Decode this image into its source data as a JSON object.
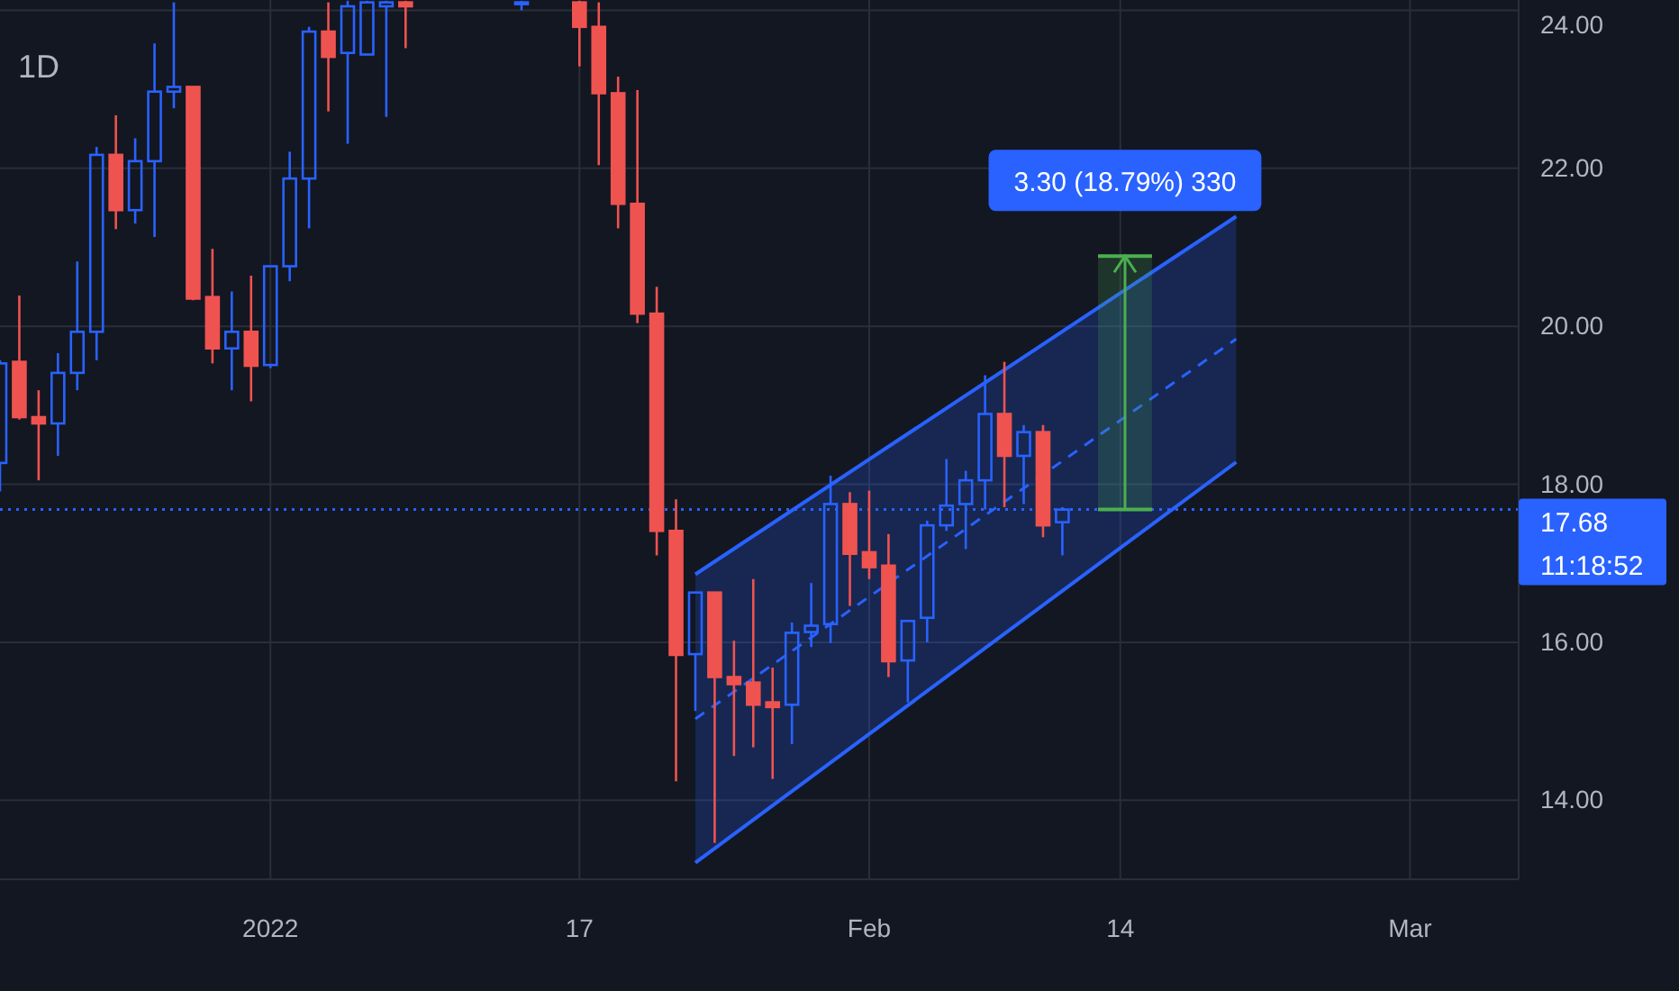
{
  "chart_data": {
    "type": "candlestick",
    "title": "1D",
    "x": [
      "2021-12-18",
      "2021-12-19",
      "2021-12-20",
      "2021-12-21",
      "2021-12-22",
      "2021-12-23",
      "2021-12-24",
      "2021-12-25",
      "2021-12-26",
      "2021-12-27",
      "2021-12-28",
      "2021-12-29",
      "2021-12-30",
      "2021-12-31",
      "2022-01-01",
      "2022-01-02",
      "2022-01-03",
      "2022-01-04",
      "2022-01-05",
      "2022-01-06",
      "2022-01-07",
      "2022-01-08",
      "2022-01-14",
      "2022-01-17",
      "2022-01-18",
      "2022-01-19",
      "2022-01-20",
      "2022-01-21",
      "2022-01-22",
      "2022-01-23",
      "2022-01-24",
      "2022-01-25",
      "2022-01-26",
      "2022-01-27",
      "2022-01-28",
      "2022-01-29",
      "2022-01-30",
      "2022-01-31",
      "2022-02-01",
      "2022-02-02",
      "2022-02-03",
      "2022-02-04",
      "2022-02-05",
      "2022-02-06",
      "2022-02-07",
      "2022-02-08",
      "2022-02-09",
      "2022-02-10",
      "2022-02-11"
    ],
    "ohlc": [
      [
        18.27,
        19.57,
        17.91,
        19.53
      ],
      [
        19.55,
        20.39,
        18.82,
        18.85
      ],
      [
        18.85,
        19.19,
        18.05,
        18.77
      ],
      [
        18.77,
        19.66,
        18.36,
        19.41
      ],
      [
        19.41,
        20.82,
        19.19,
        19.93
      ],
      [
        19.93,
        22.27,
        19.57,
        22.17
      ],
      [
        22.17,
        22.67,
        21.23,
        21.47
      ],
      [
        21.47,
        22.38,
        21.3,
        22.09
      ],
      [
        22.09,
        23.58,
        21.13,
        22.97
      ],
      [
        22.97,
        24.1,
        22.76,
        23.03
      ],
      [
        23.03,
        23.03,
        20.33,
        20.35
      ],
      [
        20.37,
        20.98,
        19.53,
        19.72
      ],
      [
        19.72,
        20.44,
        19.19,
        19.93
      ],
      [
        19.93,
        20.64,
        19.05,
        19.5
      ],
      [
        19.51,
        20.76,
        19.47,
        20.76
      ],
      [
        20.76,
        22.21,
        20.57,
        21.87
      ],
      [
        21.87,
        23.79,
        21.24,
        23.73
      ],
      [
        23.73,
        24.1,
        22.72,
        23.41
      ],
      [
        23.46,
        24.12,
        22.31,
        24.05
      ],
      [
        23.44,
        24.12,
        23.44,
        24.1
      ],
      [
        24.05,
        24.12,
        22.65,
        24.1
      ],
      [
        24.1,
        24.12,
        23.52,
        24.05
      ],
      [
        24.08,
        24.12,
        24.0,
        24.1
      ],
      [
        24.1,
        24.12,
        23.29,
        23.79
      ],
      [
        23.79,
        24.1,
        22.04,
        22.95
      ],
      [
        22.95,
        23.16,
        21.24,
        21.55
      ],
      [
        21.55,
        22.99,
        20.04,
        20.16
      ],
      [
        20.16,
        20.5,
        17.1,
        17.41
      ],
      [
        17.41,
        17.81,
        14.24,
        15.84
      ],
      [
        15.85,
        16.63,
        15.13,
        16.63
      ],
      [
        16.63,
        16.63,
        13.46,
        15.56
      ],
      [
        15.56,
        16.02,
        14.56,
        15.47
      ],
      [
        15.49,
        16.8,
        14.67,
        15.21
      ],
      [
        15.24,
        15.68,
        14.27,
        15.18
      ],
      [
        15.21,
        16.25,
        14.71,
        16.12
      ],
      [
        16.13,
        16.75,
        15.94,
        16.21
      ],
      [
        16.23,
        18.11,
        15.99,
        17.75
      ],
      [
        17.75,
        17.9,
        16.46,
        17.12
      ],
      [
        17.14,
        17.92,
        16.8,
        16.95
      ],
      [
        16.97,
        17.37,
        15.56,
        15.76
      ],
      [
        15.77,
        16.27,
        15.24,
        16.27
      ],
      [
        16.31,
        17.54,
        16.0,
        17.48
      ],
      [
        17.48,
        18.32,
        17.41,
        17.73
      ],
      [
        17.75,
        18.17,
        17.18,
        18.05
      ],
      [
        18.05,
        19.38,
        17.68,
        18.89
      ],
      [
        18.89,
        19.55,
        17.71,
        18.36
      ],
      [
        18.36,
        18.75,
        17.75,
        18.66
      ],
      [
        18.66,
        18.75,
        17.33,
        17.48
      ],
      [
        17.52,
        17.71,
        17.1,
        17.68
      ]
    ],
    "series": [
      {
        "type": "line",
        "color": "#2962ff",
        "line_style": "solid",
        "x": [
          "2022-01-23",
          "2022-02-20"
        ],
        "values": [
          16.86,
          21.39
        ]
      },
      {
        "type": "line",
        "color": "#2962ff",
        "line_style": "dashed",
        "x": [
          "2022-01-23",
          "2022-02-20"
        ],
        "values": [
          15.03,
          19.84
        ],
        "lower": [
          13.21,
          18.28
        ],
        "upper": [
          16.86,
          21.39
        ]
      },
      {
        "type": "line",
        "color": "#2962ff",
        "line_style": "solid",
        "x": [
          "2022-01-23",
          "2022-02-20"
        ],
        "values": [
          13.21,
          18.28
        ]
      }
    ],
    "annotations": [
      {
        "text": "3.30 (18.79%) 330",
        "x": "2022-02-20",
        "y": 21.39
      },
      "11:18:52"
    ],
    "ref_lines": [
      {
        "axis": "y",
        "value": 17.68,
        "label": "17.68",
        "color": "#2962ff",
        "line_style": "dotted"
      }
    ],
    "xlim": [
      "2021-12-18",
      "2022-03-06T15:00"
    ],
    "xticks": [
      {
        "value": "2022-01-01",
        "label": "2022"
      },
      {
        "value": "2022-01-17",
        "label": "17"
      },
      {
        "value": "2022-02-01",
        "label": "Feb"
      },
      {
        "value": "2022-02-14",
        "label": "14"
      },
      {
        "value": "2022-03-01",
        "label": "Mar"
      }
    ],
    "ylim": [
      13,
      24.13
    ],
    "yticks": [
      {
        "value": 14,
        "label": "14.00"
      },
      {
        "value": 16,
        "label": "16.00"
      },
      {
        "value": 18,
        "label": "18.00"
      },
      {
        "value": 20,
        "label": "20.00"
      },
      {
        "value": 22,
        "label": "22.00"
      },
      {
        "value": 24,
        "label": "24.00"
      }
    ],
    "grid": true
  }
}
